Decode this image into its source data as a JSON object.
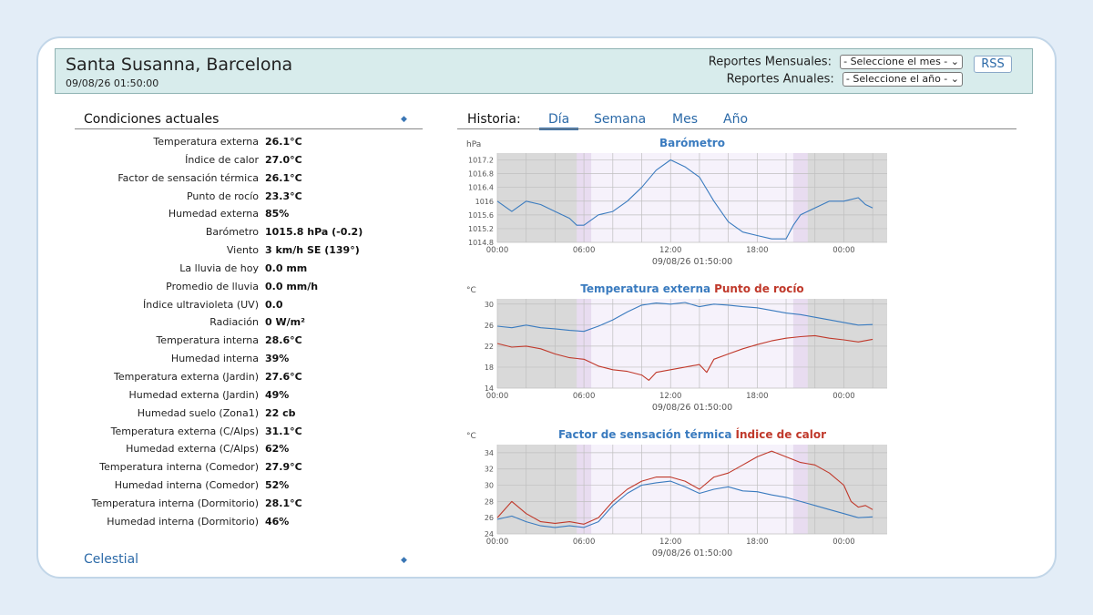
{
  "header": {
    "station": "Santa Susanna, Barcelona",
    "datetime": "09/08/26 01:50:00",
    "monthly_label": "Reportes Mensuales:",
    "monthly_select": "- Seleccione el mes -",
    "yearly_label": "Reportes Anuales:",
    "yearly_select": "- Seleccione el año -",
    "rss": "RSS"
  },
  "current": {
    "title": "Condiciones actuales",
    "rows": [
      {
        "label": "Temperatura externa",
        "value": "26.1°C"
      },
      {
        "label": "Índice de calor",
        "value": "27.0°C"
      },
      {
        "label": "Factor de sensación térmica",
        "value": "26.1°C"
      },
      {
        "label": "Punto de rocío",
        "value": "23.3°C"
      },
      {
        "label": "Humedad externa",
        "value": "85%"
      },
      {
        "label": "Barómetro",
        "value": "1015.8 hPa (-0.2)"
      },
      {
        "label": "Viento",
        "value": "3 km/h SE (139°)"
      },
      {
        "label": "La lluvia de hoy",
        "value": "0.0 mm"
      },
      {
        "label": "Promedio de lluvia",
        "value": "0.0 mm/h"
      },
      {
        "label": "Índice ultravioleta (UV)",
        "value": "0.0"
      },
      {
        "label": "Radiación",
        "value": "0 W/m²"
      },
      {
        "label": "Temperatura interna",
        "value": "28.6°C"
      },
      {
        "label": "Humedad interna",
        "value": "39%"
      },
      {
        "label": "Temperatura externa (Jardin)",
        "value": "27.6°C"
      },
      {
        "label": "Humedad externa (Jardin)",
        "value": "49%"
      },
      {
        "label": "Humedad suelo (Zona1)",
        "value": "22 cb"
      },
      {
        "label": "Temperatura externa (C/Alps)",
        "value": "31.1°C"
      },
      {
        "label": "Humedad externa (C/Alps)",
        "value": "62%"
      },
      {
        "label": "Temperatura interna (Comedor)",
        "value": "27.9°C"
      },
      {
        "label": "Humedad interna (Comedor)",
        "value": "52%"
      },
      {
        "label": "Temperatura interna (Dormitorio)",
        "value": "28.1°C"
      },
      {
        "label": "Humedad interna (Dormitorio)",
        "value": "46%"
      }
    ],
    "celestial": "Celestial"
  },
  "history": {
    "label": "Historia:",
    "tabs": [
      "Día",
      "Semana",
      "Mes",
      "Año"
    ],
    "active_tab": "Día"
  },
  "colors": {
    "blue": "#3a7bbf",
    "red": "#c0392b",
    "accent": "#2c6aa8"
  },
  "chart_data": [
    {
      "type": "line",
      "title": "Barómetro",
      "ylabel": "hPa",
      "xlabel": "09/08/26 01:50:00",
      "x_ticks": [
        "00:00",
        "06:00",
        "12:00",
        "18:00",
        "00:00"
      ],
      "x_tick_hours": [
        0,
        6,
        12,
        18,
        24
      ],
      "x_range": [
        0,
        27
      ],
      "ylim": [
        1014.8,
        1017.4
      ],
      "y_ticks": [
        1014.8,
        1015.2,
        1015.6,
        1016.0,
        1016.4,
        1016.8,
        1017.2
      ],
      "series": [
        {
          "color": "#3a7bbf",
          "x": [
            0,
            1,
            2,
            3,
            4,
            5,
            5.5,
            6,
            7,
            8,
            9,
            10,
            11,
            12,
            13,
            14,
            15,
            16,
            17,
            18,
            19,
            20,
            20.5,
            21,
            22,
            23,
            24,
            25,
            25.5,
            26
          ],
          "values": [
            1016.0,
            1015.7,
            1016.0,
            1015.9,
            1015.7,
            1015.5,
            1015.3,
            1015.3,
            1015.6,
            1015.7,
            1016.0,
            1016.4,
            1016.9,
            1017.2,
            1017.0,
            1016.7,
            1016.0,
            1015.4,
            1015.1,
            1015.0,
            1014.9,
            1014.9,
            1015.3,
            1015.6,
            1015.8,
            1016.0,
            1016.0,
            1016.1,
            1015.9,
            1015.8
          ]
        }
      ]
    },
    {
      "type": "line",
      "title": "Temperatura externa",
      "title2": "Punto de rocío",
      "ylabel": "°C",
      "xlabel": "09/08/26 01:50:00",
      "x_ticks": [
        "00:00",
        "06:00",
        "12:00",
        "18:00",
        "00:00"
      ],
      "x_tick_hours": [
        0,
        6,
        12,
        18,
        24
      ],
      "x_range": [
        0,
        27
      ],
      "ylim": [
        14,
        31
      ],
      "y_ticks": [
        14,
        18,
        22,
        26,
        30
      ],
      "series": [
        {
          "name": "Temperatura externa",
          "color": "#3a7bbf",
          "x": [
            0,
            1,
            2,
            3,
            4,
            5,
            6,
            7,
            8,
            9,
            10,
            11,
            12,
            13,
            14,
            15,
            16,
            17,
            18,
            19,
            20,
            21,
            22,
            23,
            24,
            25,
            26
          ],
          "values": [
            25.8,
            25.5,
            26.0,
            25.5,
            25.3,
            25.0,
            24.8,
            25.8,
            27.0,
            28.5,
            29.8,
            30.2,
            30.0,
            30.3,
            29.5,
            30.0,
            29.8,
            29.5,
            29.3,
            28.8,
            28.3,
            28.0,
            27.5,
            27.0,
            26.5,
            26.0,
            26.1
          ]
        },
        {
          "name": "Punto de rocío",
          "color": "#c0392b",
          "x": [
            0,
            1,
            2,
            3,
            4,
            5,
            6,
            7,
            8,
            9,
            10,
            10.5,
            11,
            12,
            13,
            14,
            14.5,
            15,
            16,
            17,
            18,
            19,
            20,
            21,
            22,
            23,
            24,
            25,
            26
          ],
          "values": [
            22.5,
            21.8,
            22.0,
            21.5,
            20.5,
            19.8,
            19.5,
            18.2,
            17.5,
            17.2,
            16.5,
            15.5,
            17.0,
            17.5,
            18.0,
            18.5,
            17.0,
            19.5,
            20.5,
            21.5,
            22.3,
            23.0,
            23.5,
            23.8,
            24.0,
            23.5,
            23.2,
            22.8,
            23.3
          ]
        }
      ]
    },
    {
      "type": "line",
      "title": "Factor de sensación térmica",
      "title2": "Índice de calor",
      "ylabel": "°C",
      "xlabel": "09/08/26 01:50:00",
      "x_ticks": [
        "00:00",
        "06:00",
        "12:00",
        "18:00",
        "00:00"
      ],
      "x_tick_hours": [
        0,
        6,
        12,
        18,
        24
      ],
      "x_range": [
        0,
        27
      ],
      "ylim": [
        24,
        35
      ],
      "y_ticks": [
        24,
        26,
        28,
        30,
        32,
        34
      ],
      "series": [
        {
          "name": "Factor de sensación térmica",
          "color": "#3a7bbf",
          "x": [
            0,
            1,
            2,
            3,
            4,
            5,
            6,
            7,
            8,
            9,
            10,
            11,
            12,
            13,
            14,
            15,
            16,
            17,
            18,
            19,
            20,
            21,
            22,
            23,
            24,
            25,
            26
          ],
          "values": [
            25.8,
            26.2,
            25.5,
            25.0,
            24.8,
            25.0,
            24.8,
            25.5,
            27.5,
            29.0,
            30.0,
            30.3,
            30.5,
            29.8,
            29.0,
            29.5,
            29.8,
            29.3,
            29.2,
            28.8,
            28.5,
            28.0,
            27.5,
            27.0,
            26.5,
            26.0,
            26.1
          ]
        },
        {
          "name": "Índice de calor",
          "color": "#c0392b",
          "x": [
            0,
            1,
            2,
            3,
            4,
            5,
            6,
            7,
            8,
            9,
            10,
            11,
            12,
            13,
            14,
            15,
            16,
            17,
            18,
            19,
            20,
            21,
            22,
            23,
            24,
            24.5,
            25,
            25.5,
            26
          ],
          "values": [
            26.0,
            28.0,
            26.5,
            25.5,
            25.3,
            25.5,
            25.2,
            26.0,
            28.0,
            29.5,
            30.5,
            31.0,
            31.0,
            30.5,
            29.5,
            31.0,
            31.5,
            32.5,
            33.5,
            34.2,
            33.5,
            32.8,
            32.5,
            31.5,
            30.0,
            28.0,
            27.3,
            27.5,
            27.0
          ]
        }
      ]
    }
  ]
}
